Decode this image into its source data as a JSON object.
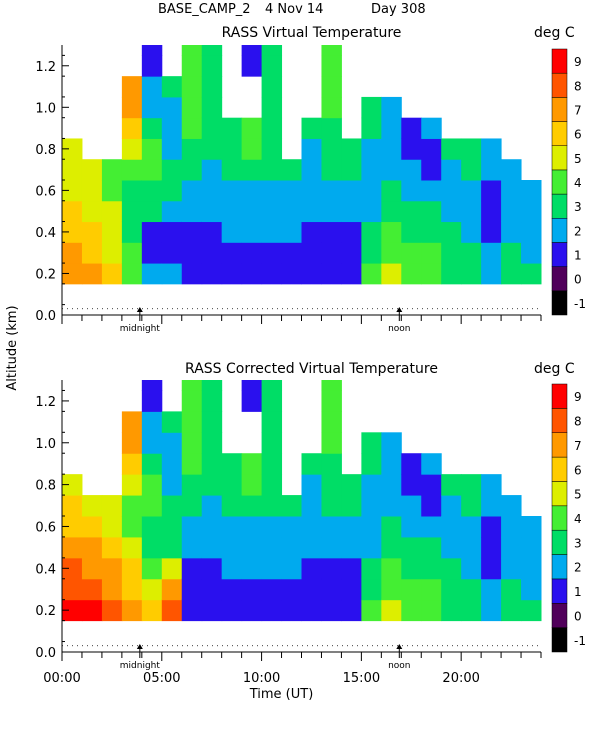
{
  "header": {
    "site": "BASE_CAMP_2",
    "date": "4 Nov 14",
    "day": "Day 308"
  },
  "colors": {
    "scale": [
      "#000000",
      "#50005a",
      "#2a10ee",
      "#00aaee",
      "#00dd66",
      "#44ee33",
      "#ddee00",
      "#ffcc00",
      "#ff9900",
      "#ff5500",
      "#ff0000"
    ],
    "missing": "#ffffff"
  },
  "chart_data": [
    {
      "type": "heatmap",
      "title": "RASS Virtual Temperature",
      "units_label": "deg C",
      "ylabel": "Altitude (km)",
      "xlabel": "Time (UT)",
      "ylim": [
        0.0,
        1.3
      ],
      "xlim": [
        0,
        24
      ],
      "yticks": [
        "0.0",
        "0.2",
        "0.4",
        "0.6",
        "0.8",
        "1.0",
        "1.2"
      ],
      "xtick_labels": [],
      "time_markers": [
        "midnight",
        "noon"
      ],
      "colorbar_values": [
        "-1",
        "0",
        "1",
        "2",
        "3",
        "4",
        "5",
        "6",
        "7",
        "8",
        "9"
      ],
      "gates_km": [
        0.2,
        0.3,
        0.4,
        0.5,
        0.6,
        0.7,
        0.8,
        0.9,
        1.0,
        1.1,
        1.2,
        1.3
      ],
      "hours": [
        0,
        1,
        2,
        3,
        4,
        5,
        6,
        7,
        8,
        9,
        10,
        11,
        12,
        13,
        14,
        15,
        16,
        17,
        18,
        19,
        20,
        21,
        22,
        23
      ],
      "columns_by_hour": [
        [
          7,
          7,
          6,
          6,
          5,
          5,
          5,
          null,
          null,
          null,
          null,
          null
        ],
        [
          7,
          6,
          6,
          5,
          5,
          5,
          null,
          null,
          null,
          null,
          null,
          null
        ],
        [
          6,
          5,
          5,
          5,
          4,
          4,
          null,
          null,
          null,
          null,
          null,
          null
        ],
        [
          4,
          4,
          3,
          3,
          3,
          4,
          5,
          6,
          7,
          7,
          null,
          null
        ],
        [
          2,
          1,
          1,
          3,
          3,
          4,
          4,
          3,
          2,
          2,
          1,
          1
        ],
        [
          2,
          1,
          1,
          2,
          3,
          3,
          2,
          2,
          2,
          3,
          null,
          null
        ],
        [
          1,
          1,
          1,
          2,
          2,
          3,
          3,
          4,
          4,
          4,
          4,
          4
        ],
        [
          1,
          1,
          1,
          2,
          2,
          2,
          3,
          3,
          3,
          3,
          3,
          3
        ],
        [
          1,
          1,
          2,
          2,
          2,
          3,
          3,
          3,
          null,
          null,
          null,
          null
        ],
        [
          1,
          1,
          2,
          2,
          2,
          3,
          4,
          4,
          null,
          null,
          1,
          1
        ],
        [
          1,
          1,
          2,
          2,
          2,
          3,
          3,
          3,
          3,
          3,
          3,
          3
        ],
        [
          1,
          1,
          2,
          2,
          2,
          3,
          null,
          null,
          null,
          null,
          null,
          null
        ],
        [
          1,
          1,
          1,
          2,
          2,
          2,
          2,
          3,
          null,
          null,
          null,
          null
        ],
        [
          1,
          1,
          1,
          2,
          2,
          3,
          3,
          3,
          4,
          4,
          4,
          4
        ],
        [
          1,
          1,
          1,
          2,
          2,
          3,
          3,
          null,
          null,
          null,
          null,
          null
        ],
        [
          4,
          3,
          3,
          2,
          2,
          2,
          2,
          3,
          3,
          null,
          null,
          null
        ],
        [
          5,
          4,
          4,
          3,
          3,
          2,
          2,
          2,
          2,
          null,
          null,
          null
        ],
        [
          4,
          4,
          3,
          3,
          2,
          2,
          1,
          1,
          null,
          null,
          null,
          null
        ],
        [
          4,
          4,
          3,
          3,
          2,
          1,
          1,
          2,
          null,
          null,
          null,
          null
        ],
        [
          3,
          3,
          3,
          2,
          2,
          2,
          3,
          null,
          null,
          null,
          null,
          null
        ],
        [
          3,
          3,
          2,
          2,
          2,
          3,
          3,
          null,
          null,
          null,
          null,
          null
        ],
        [
          2,
          2,
          1,
          1,
          1,
          2,
          2,
          null,
          null,
          null,
          null,
          null
        ],
        [
          3,
          3,
          2,
          2,
          2,
          2,
          null,
          null,
          null,
          null,
          null,
          null
        ],
        [
          3,
          2,
          2,
          2,
          2,
          null,
          null,
          null,
          null,
          null,
          null,
          null
        ]
      ]
    },
    {
      "type": "heatmap",
      "title": "RASS Corrected Virtual Temperature",
      "units_label": "deg C",
      "ylabel": "Altitude (km)",
      "xlabel": "Time (UT)",
      "ylim": [
        0.0,
        1.3
      ],
      "xlim": [
        0,
        24
      ],
      "yticks": [
        "0.0",
        "0.2",
        "0.4",
        "0.6",
        "0.8",
        "1.0",
        "1.2"
      ],
      "xtick_labels": [
        "00:00",
        "05:00",
        "10:00",
        "15:00",
        "20:00"
      ],
      "time_markers": [
        "midnight",
        "noon"
      ],
      "colorbar_values": [
        "-1",
        "0",
        "1",
        "2",
        "3",
        "4",
        "5",
        "6",
        "7",
        "8",
        "9"
      ],
      "gates_km": [
        0.2,
        0.3,
        0.4,
        0.5,
        0.6,
        0.7,
        0.8,
        0.9,
        1.0,
        1.1,
        1.2,
        1.3
      ],
      "hours": [
        0,
        1,
        2,
        3,
        4,
        5,
        6,
        7,
        8,
        9,
        10,
        11,
        12,
        13,
        14,
        15,
        16,
        17,
        18,
        19,
        20,
        21,
        22,
        23
      ],
      "columns_by_hour": [
        [
          9,
          8,
          8,
          7,
          6,
          6,
          5,
          null,
          null,
          null,
          null,
          null
        ],
        [
          9,
          8,
          7,
          7,
          6,
          5,
          null,
          null,
          null,
          null,
          null,
          null
        ],
        [
          8,
          7,
          7,
          6,
          5,
          5,
          null,
          null,
          null,
          null,
          null,
          null
        ],
        [
          7,
          6,
          6,
          5,
          4,
          4,
          5,
          6,
          7,
          7,
          null,
          null
        ],
        [
          6,
          5,
          4,
          3,
          3,
          4,
          4,
          3,
          2,
          2,
          1,
          1
        ],
        [
          8,
          7,
          5,
          3,
          3,
          3,
          2,
          2,
          2,
          3,
          null,
          null
        ],
        [
          1,
          1,
          1,
          2,
          2,
          3,
          3,
          4,
          4,
          4,
          4,
          4
        ],
        [
          1,
          1,
          1,
          2,
          2,
          2,
          3,
          3,
          3,
          3,
          3,
          3
        ],
        [
          1,
          1,
          2,
          2,
          2,
          3,
          3,
          3,
          null,
          null,
          null,
          null
        ],
        [
          1,
          1,
          2,
          2,
          2,
          3,
          4,
          4,
          null,
          null,
          1,
          1
        ],
        [
          1,
          1,
          2,
          2,
          2,
          3,
          3,
          3,
          3,
          3,
          3,
          3
        ],
        [
          1,
          1,
          2,
          2,
          2,
          3,
          null,
          null,
          null,
          null,
          null,
          null
        ],
        [
          1,
          1,
          1,
          2,
          2,
          2,
          2,
          3,
          null,
          null,
          null,
          null
        ],
        [
          1,
          1,
          1,
          2,
          2,
          3,
          3,
          3,
          4,
          4,
          4,
          4
        ],
        [
          1,
          1,
          1,
          2,
          2,
          3,
          3,
          null,
          null,
          null,
          null,
          null
        ],
        [
          4,
          3,
          3,
          2,
          2,
          2,
          2,
          3,
          3,
          null,
          null,
          null
        ],
        [
          5,
          4,
          4,
          3,
          3,
          2,
          2,
          2,
          2,
          null,
          null,
          null
        ],
        [
          4,
          4,
          3,
          3,
          2,
          2,
          1,
          1,
          null,
          null,
          null,
          null
        ],
        [
          4,
          4,
          3,
          3,
          2,
          1,
          1,
          2,
          null,
          null,
          null,
          null
        ],
        [
          3,
          3,
          3,
          2,
          2,
          2,
          3,
          null,
          null,
          null,
          null,
          null
        ],
        [
          3,
          3,
          2,
          2,
          2,
          3,
          3,
          null,
          null,
          null,
          null,
          null
        ],
        [
          2,
          2,
          1,
          1,
          1,
          2,
          2,
          null,
          null,
          null,
          null,
          null
        ],
        [
          3,
          3,
          2,
          2,
          2,
          2,
          null,
          null,
          null,
          null,
          null,
          null
        ],
        [
          3,
          2,
          2,
          2,
          2,
          null,
          null,
          null,
          null,
          null,
          null,
          null
        ]
      ]
    }
  ]
}
